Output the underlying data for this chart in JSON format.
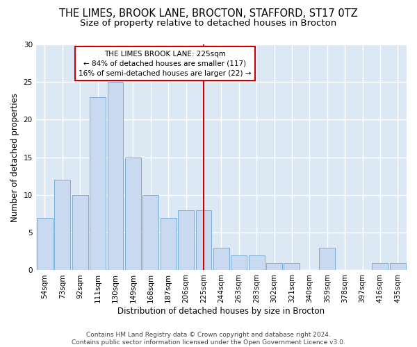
{
  "title1": "THE LIMES, BROOK LANE, BROCTON, STAFFORD, ST17 0TZ",
  "title2": "Size of property relative to detached houses in Brocton",
  "xlabel": "Distribution of detached houses by size in Brocton",
  "ylabel": "Number of detached properties",
  "categories": [
    "54sqm",
    "73sqm",
    "92sqm",
    "111sqm",
    "130sqm",
    "149sqm",
    "168sqm",
    "187sqm",
    "206sqm",
    "225sqm",
    "244sqm",
    "263sqm",
    "283sqm",
    "302sqm",
    "321sqm",
    "340sqm",
    "359sqm",
    "378sqm",
    "397sqm",
    "416sqm",
    "435sqm"
  ],
  "values": [
    7,
    12,
    10,
    23,
    25,
    15,
    10,
    7,
    8,
    8,
    3,
    2,
    2,
    1,
    1,
    0,
    3,
    0,
    0,
    1,
    1
  ],
  "bar_color": "#c9daf0",
  "bar_edge_color": "#7bafd4",
  "vline_x_index": 9,
  "vline_color": "#cc0000",
  "annotation_line1": "THE LIMES BROOK LANE: 225sqm",
  "annotation_line2": "← 84% of detached houses are smaller (117)",
  "annotation_line3": "16% of semi-detached houses are larger (22) →",
  "box_color": "#cc0000",
  "ylim": [
    0,
    30
  ],
  "yticks": [
    0,
    5,
    10,
    15,
    20,
    25,
    30
  ],
  "footer": "Contains HM Land Registry data © Crown copyright and database right 2024.\nContains public sector information licensed under the Open Government Licence v3.0.",
  "bg_color": "#dce9f5",
  "grid_color": "#ffffff",
  "title1_fontsize": 10.5,
  "title2_fontsize": 9.5,
  "xlabel_fontsize": 8.5,
  "ylabel_fontsize": 8.5,
  "tick_fontsize": 7.5,
  "annotation_fontsize": 7.5,
  "footer_fontsize": 6.5
}
